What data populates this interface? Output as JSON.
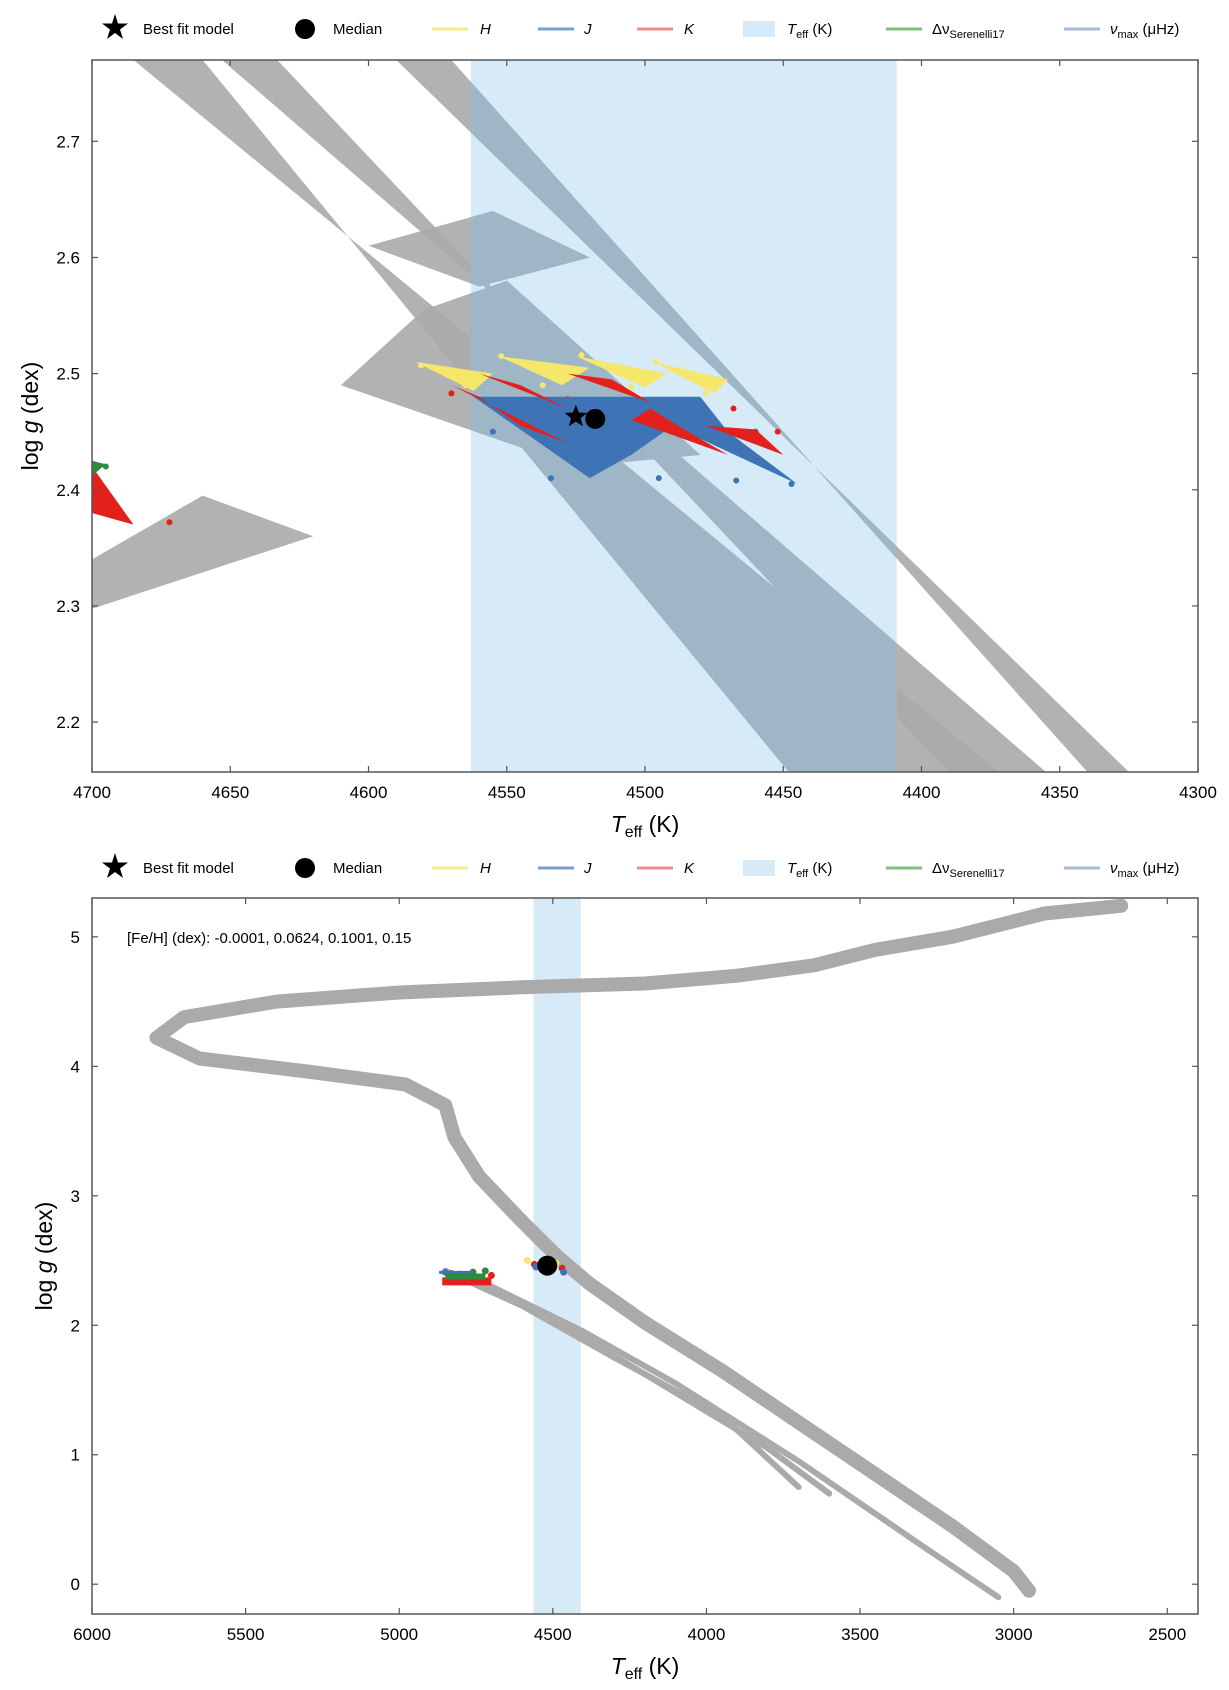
{
  "legend": {
    "best_fit": "Best fit model",
    "median": "Median",
    "H": "H",
    "J": "J",
    "K": "K",
    "teff_sym": "T",
    "teff_sub": "eff",
    "teff_unit": " (K)",
    "dnu_sym": "Δν",
    "dnu_sub": "Serenelli17",
    "numax_sym": "ν",
    "numax_sub": "max",
    "numax_unit": " (μHz)"
  },
  "colors": {
    "track": "#aaaaaa",
    "teff_band": "#d6eaf8",
    "overlap": "#9fb6c6",
    "H": "#f5e76a",
    "J": "#3e74b6",
    "K": "#e2201c",
    "dnu": "#2e8b3e",
    "legend_H": "#f7ec8c",
    "legend_J": "#7a9fd0",
    "legend_K": "#f08a8a",
    "legend_dnu": "#7fbf7f",
    "legend_numax": "#a9bcd6",
    "legend_teff": "#d6eaf8",
    "marker": "#000000",
    "frame": "#555555",
    "zoom_box": "#bbbbbb"
  },
  "chart_data": [
    {
      "type": "scatter",
      "title": "",
      "xlabel_sym": "T",
      "xlabel_sub": "eff",
      "xlabel_unit": " (K)",
      "ylabel_pre": "log ",
      "ylabel_sym": "g",
      "ylabel_unit": " (dex)",
      "xlim": [
        4700,
        4300
      ],
      "ylim": [
        2.77,
        2.157
      ],
      "xticks": [
        4700,
        4650,
        4600,
        4550,
        4500,
        4450,
        4400,
        4350,
        4300
      ],
      "yticks": [
        2.2,
        2.3,
        2.4,
        2.5,
        2.6,
        2.7
      ],
      "teff_band": [
        4563,
        4409
      ],
      "best_fit": {
        "x": 4525,
        "y": 2.463
      },
      "median": {
        "x": 4518,
        "y": 2.461
      },
      "tracks": [
        [
          [
            4700,
            2.235
          ],
          [
            4700,
            2.46
          ],
          [
            4850,
            2.35
          ],
          [
            4950,
            2.157
          ],
          [
            4800,
            2.157
          ]
        ],
        [
          [
            4700,
            2.29
          ],
          [
            4700,
            2.34
          ],
          [
            4660,
            2.395
          ],
          [
            4620,
            2.36
          ],
          [
            4880,
            2.157
          ],
          [
            4850,
            2.157
          ]
        ],
        [
          [
            4685,
            2.77
          ],
          [
            4660,
            2.77
          ],
          [
            4448,
            2.157
          ],
          [
            4372,
            2.157
          ]
        ],
        [
          [
            4653,
            2.77
          ],
          [
            4633,
            2.77
          ],
          [
            4390,
            2.157
          ],
          [
            4355,
            2.157
          ]
        ],
        [
          [
            4590,
            2.77
          ],
          [
            4570,
            2.77
          ],
          [
            4340,
            2.157
          ],
          [
            4325,
            2.157
          ]
        ],
        [
          [
            4610,
            2.49
          ],
          [
            4580,
            2.555
          ],
          [
            4550,
            2.58
          ],
          [
            4480,
            2.43
          ],
          [
            4525,
            2.42
          ]
        ],
        [
          [
            4555,
            2.64
          ],
          [
            4520,
            2.6
          ],
          [
            4560,
            2.575
          ],
          [
            4600,
            2.61
          ]
        ]
      ],
      "series": [
        {
          "name": "H",
          "points": [
            [
              4581,
              2.507
            ],
            [
              4565,
              2.49
            ],
            [
              4552,
              2.515
            ],
            [
              4537,
              2.49
            ],
            [
              4523,
              2.516
            ],
            [
              4505,
              2.488
            ],
            [
              4496,
              2.51
            ],
            [
              4478,
              2.483
            ]
          ]
        },
        {
          "name": "K",
          "points": [
            [
              4570,
              2.483
            ],
            [
              4545,
              2.47
            ],
            [
              4528,
              2.478
            ],
            [
              4505,
              2.46
            ],
            [
              4498,
              2.475
            ],
            [
              4478,
              2.455
            ],
            [
              4468,
              2.47
            ],
            [
              4452,
              2.45
            ],
            [
              4695,
              2.385
            ],
            [
              4672,
              2.372
            ]
          ]
        },
        {
          "name": "J",
          "points": [
            [
              4555,
              2.45
            ],
            [
              4534,
              2.41
            ],
            [
              4518,
              2.46
            ],
            [
              4495,
              2.41
            ],
            [
              4488,
              2.455
            ],
            [
              4467,
              2.408
            ],
            [
              4460,
              2.45
            ],
            [
              4447,
              2.405
            ]
          ]
        },
        {
          "name": "Δν",
          "points": [
            [
              4700,
              2.415
            ],
            [
              4695,
              2.42
            ],
            [
              4540,
              2.455
            ],
            [
              4522,
              2.458
            ]
          ]
        }
      ]
    },
    {
      "type": "scatter",
      "title": "",
      "xlabel_sym": "T",
      "xlabel_sub": "eff",
      "xlabel_unit": " (K)",
      "ylabel_pre": "log ",
      "ylabel_sym": "g",
      "ylabel_unit": " (dex)",
      "xlim": [
        6000,
        2400
      ],
      "ylim": [
        5.3,
        -0.23
      ],
      "xticks": [
        6000,
        5500,
        5000,
        4500,
        4000,
        3500,
        3000,
        2500
      ],
      "yticks": [
        0,
        1,
        2,
        3,
        4,
        5
      ],
      "teff_band": [
        4563,
        4409
      ],
      "annotation": "[Fe/H] (dex): -0.0001, 0.0624, 0.1001, 0.15",
      "zoom_box": {
        "x": [
          4700,
          4300
        ],
        "y": [
          2.157,
          2.77
        ]
      },
      "best_fit": {
        "x": 4525,
        "y": 2.463
      },
      "median": {
        "x": 4518,
        "y": 2.461
      },
      "series": [
        {
          "name": "H",
          "points": [
            [
              4583,
              2.5
            ],
            [
              4520,
              2.49
            ],
            [
              4490,
              2.48
            ]
          ]
        },
        {
          "name": "K",
          "points": [
            [
              4560,
              2.47
            ],
            [
              4470,
              2.44
            ],
            [
              4700,
              2.385
            ]
          ]
        },
        {
          "name": "J",
          "points": [
            [
              4555,
              2.45
            ],
            [
              4465,
              2.41
            ],
            [
              4850,
              2.41
            ]
          ]
        },
        {
          "name": "Δν",
          "points": [
            [
              4830,
              2.4
            ],
            [
              4760,
              2.41
            ],
            [
              4720,
              2.42
            ]
          ]
        }
      ]
    }
  ]
}
